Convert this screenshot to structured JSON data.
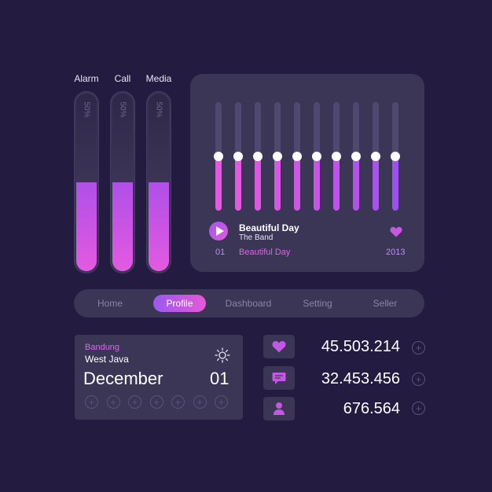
{
  "volume": {
    "sliders": [
      {
        "label": "Alarm",
        "percent_text": "50%",
        "level": 0.5
      },
      {
        "label": "Call",
        "percent_text": "50%",
        "level": 0.5
      },
      {
        "label": "Media",
        "percent_text": "50%",
        "level": 0.5
      }
    ]
  },
  "equalizer": {
    "bands": [
      0.5,
      0.5,
      0.5,
      0.5,
      0.5,
      0.5,
      0.5,
      0.5,
      0.5,
      0.5
    ],
    "colors": [
      "#e35ae0",
      "#e35ae0",
      "#dd58e2",
      "#d756e3",
      "#cf55e5",
      "#c754e7",
      "#be53e9",
      "#b352eb",
      "#a851ed",
      "#9c50ef"
    ]
  },
  "player": {
    "title": "Beautiful Day",
    "artist": "The Band",
    "track_number": "01",
    "album": "Beautiful Day",
    "year": "2013"
  },
  "tabs": [
    {
      "label": "Home",
      "active": false
    },
    {
      "label": "Profile",
      "active": true
    },
    {
      "label": "Dashboard",
      "active": false
    },
    {
      "label": "Setting",
      "active": false
    },
    {
      "label": "Seller",
      "active": false
    }
  ],
  "date_card": {
    "city": "Bandung",
    "region": "West Java",
    "month": "December",
    "day": "01",
    "weather_icon": "sun-icon",
    "plus_count": 7
  },
  "stats": [
    {
      "icon": "heart-icon",
      "value": "45.503.214"
    },
    {
      "icon": "chat-icon",
      "value": "32.453.456"
    },
    {
      "icon": "user-icon",
      "value": "676.564"
    }
  ],
  "colors": {
    "background": "#231c40",
    "panel": "#3b3556",
    "accent_pink": "#e35ae0",
    "accent_purple": "#9c57f0"
  }
}
